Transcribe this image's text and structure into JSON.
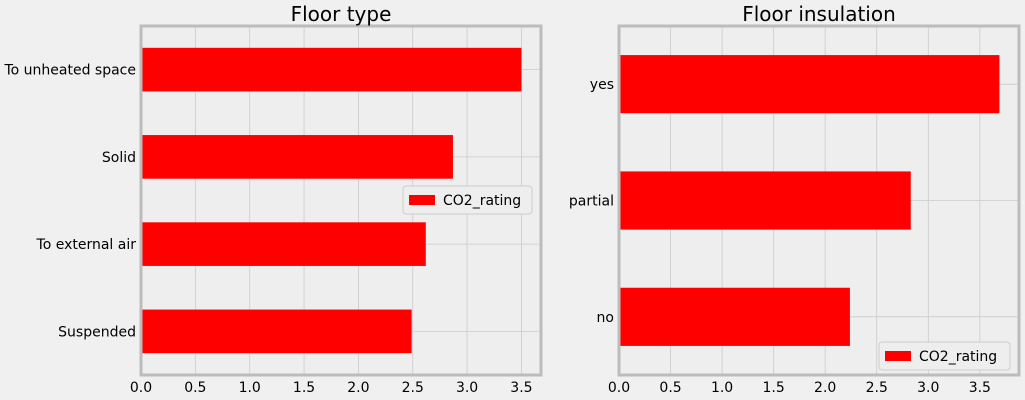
{
  "chart_data": [
    {
      "type": "bar",
      "orientation": "horizontal",
      "title": "Floor type",
      "xlabel": "",
      "ylabel": "",
      "categories": [
        "Suspended",
        "To external air",
        "Solid",
        "To unheated space"
      ],
      "series": [
        {
          "name": "CO2_rating",
          "values": [
            2.49,
            2.62,
            2.87,
            3.5
          ],
          "color": "#ff0000"
        }
      ],
      "xlim": [
        0,
        3.68
      ],
      "xticks": [
        "0.0",
        "0.5",
        "1.0",
        "1.5",
        "2.0",
        "2.5",
        "3.0",
        "3.5"
      ],
      "grid": true,
      "legend_position": "center-right"
    },
    {
      "type": "bar",
      "orientation": "horizontal",
      "title": "Floor insulation",
      "xlabel": "",
      "ylabel": "",
      "categories": [
        "no",
        "partial",
        "yes"
      ],
      "series": [
        {
          "name": "CO2_rating",
          "values": [
            2.24,
            2.83,
            3.69
          ],
          "color": "#ff0000"
        }
      ],
      "xlim": [
        0,
        3.88
      ],
      "xticks": [
        "0.0",
        "0.5",
        "1.0",
        "1.5",
        "2.0",
        "2.5",
        "3.0",
        "3.5"
      ],
      "grid": true,
      "legend_position": "lower-right"
    }
  ],
  "colors": {
    "background": "#f0f0f0",
    "axes_bg": "#eeeeee",
    "spine": "#bcbcbc",
    "grid": "#cbcbcb",
    "bar": "#ff0000"
  }
}
